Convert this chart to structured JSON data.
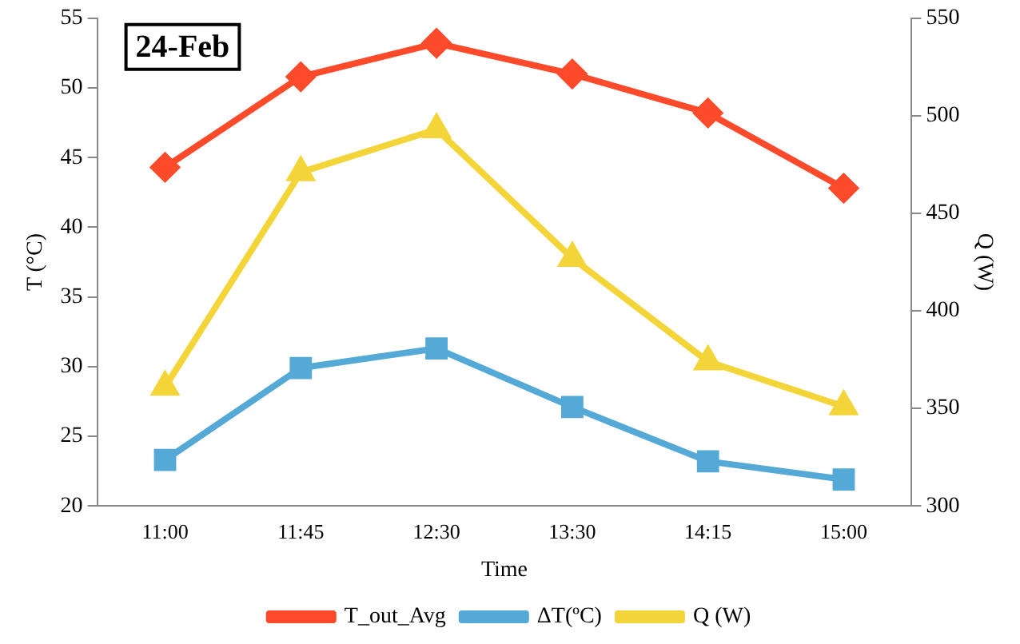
{
  "chart_data": {
    "type": "line",
    "title": "24-Feb",
    "xlabel": "Time",
    "ylabel": "T (°C)",
    "y2label": "Q (W)",
    "categories": [
      "11:00",
      "11:45",
      "12:30",
      "13:30",
      "14:15",
      "15:00"
    ],
    "series": [
      {
        "name": "T_out_Avg",
        "color": "#fc4a2b",
        "marker": "diamond",
        "values": [
          44.3,
          50.8,
          53.2,
          51.0,
          48.2,
          42.8
        ]
      },
      {
        "name": "ΔT(ºC)",
        "color": "#55a9d6",
        "marker": "square",
        "values": [
          23.3,
          29.9,
          31.3,
          27.1,
          23.2,
          21.9
        ]
      },
      {
        "name": "Q (W)",
        "color": "#f3d539",
        "marker": "triangle",
        "axis": "y2",
        "values": [
          361,
          471,
          493,
          427,
          374,
          351
        ]
      }
    ],
    "ylim": [
      20,
      55
    ],
    "yticks": [
      20,
      25,
      30,
      35,
      40,
      45,
      50,
      55
    ],
    "y2lim": [
      300,
      550
    ],
    "y2ticks": [
      300,
      350,
      400,
      450,
      500,
      550
    ],
    "grid": false,
    "legend": "bottom"
  }
}
